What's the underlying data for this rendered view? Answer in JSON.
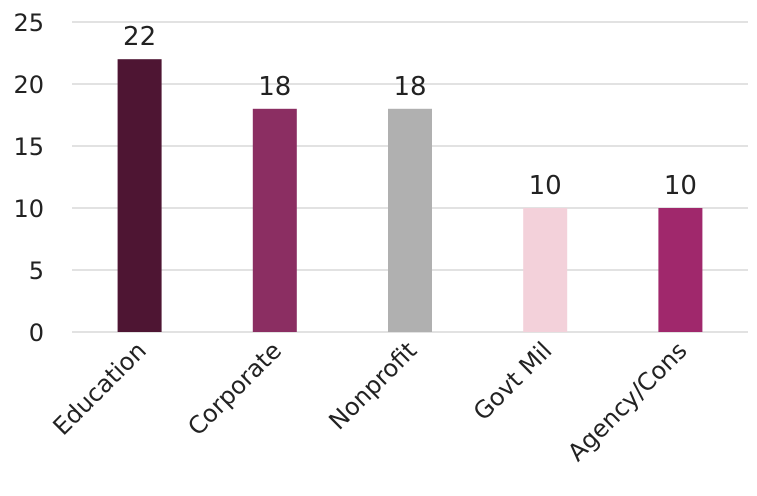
{
  "chart_data": {
    "type": "bar",
    "categories": [
      "Education",
      "Corporate",
      "Nonprofit",
      "Govt Mil",
      "Agency/Cons"
    ],
    "values": [
      22,
      18,
      18,
      10,
      10
    ],
    "data_labels": [
      "22",
      "18",
      "18",
      "10",
      "10"
    ],
    "bar_colors": [
      "#4e1533",
      "#8b2e62",
      "#b0b0b0",
      "#f3d1da",
      "#a0286c"
    ],
    "ylim": [
      0,
      25
    ],
    "yticks": [
      0,
      5,
      10,
      15,
      20,
      25
    ],
    "ytick_labels": [
      "0",
      "5",
      "10",
      "15",
      "20",
      "25"
    ],
    "title": "",
    "xlabel": "",
    "ylabel": "",
    "grid": true,
    "legend": "none"
  }
}
